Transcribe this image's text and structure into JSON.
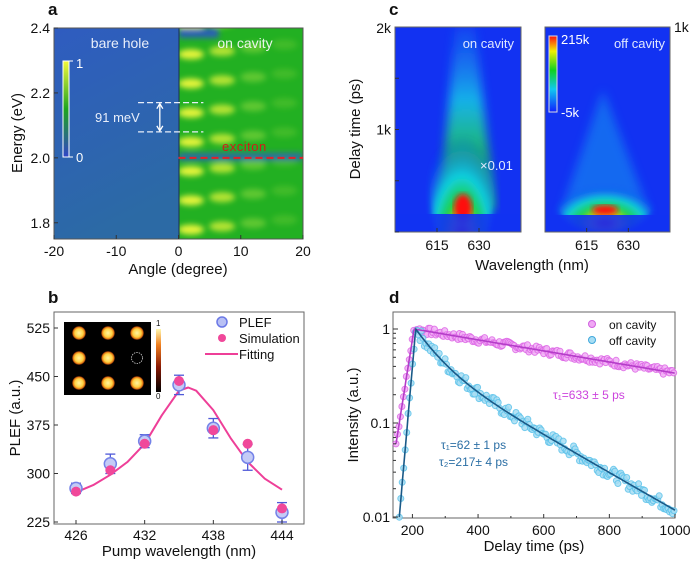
{
  "figure": {
    "panel_labels": [
      "a",
      "b",
      "c",
      "d"
    ]
  },
  "chart_data": [
    {
      "id": "a",
      "type": "heatmap",
      "title": "",
      "xlabel": "Angle (degree)",
      "ylabel": "Energy (eV)",
      "xlim": [
        -20,
        20
      ],
      "ylim": [
        1.75,
        2.4
      ],
      "xticks": [
        "-20",
        "-10",
        "0",
        "10",
        "20"
      ],
      "yticks": [
        "1.8",
        "2.0",
        "2.2",
        "2.4"
      ],
      "regions": [
        "bare hole",
        "on cavity"
      ],
      "colorbar": {
        "min": "0",
        "max": "1"
      },
      "annotations": {
        "spacing": "91 meV",
        "spacing_levels_eV": [
          2.08,
          2.17
        ],
        "exciton_label": "exciton",
        "exciton_energy_eV": 2.0
      },
      "colors": {
        "exciton": "#e0202a",
        "bare_bg": "#2e62ad",
        "cavity_bg": "#22b022",
        "bright": "#e6f53a"
      }
    },
    {
      "id": "b",
      "type": "scatter",
      "xlabel": "Pump wavelength (nm)",
      "ylabel": "PLEF (a.u.)",
      "xlim": [
        424.5,
        446.5
      ],
      "ylim": [
        220,
        545
      ],
      "xticks": [
        "426",
        "432",
        "438",
        "444"
      ],
      "yticks": [
        "225",
        "300",
        "375",
        "450",
        "525"
      ],
      "legend": {
        "position": "top-right",
        "entries": [
          "PLEF",
          "Simulation",
          "Fitting"
        ]
      },
      "series": [
        {
          "name": "PLEF",
          "x": [
            426,
            429,
            432,
            435,
            438,
            441,
            444
          ],
          "y": [
            277,
            315,
            350,
            437,
            370,
            325,
            240
          ],
          "err": [
            8,
            15,
            10,
            15,
            15,
            20,
            15
          ]
        },
        {
          "name": "Simulation",
          "x": [
            426,
            429,
            432,
            435,
            438,
            441,
            444
          ],
          "y": [
            272,
            305,
            346,
            443,
            367,
            346,
            246
          ]
        },
        {
          "name": "Fitting",
          "x": [
            426,
            427.5,
            429,
            430.5,
            432,
            433.5,
            435,
            435.8,
            436.5,
            438,
            439.5,
            441,
            442.5,
            444
          ],
          "y": [
            271,
            282,
            298,
            318,
            346,
            390,
            428,
            433,
            428,
            398,
            355,
            318,
            292,
            275
          ]
        }
      ],
      "inset": {
        "type": "heatmap",
        "grid": "3x3",
        "missing_cell": "row 2, col 3",
        "colorbar": {
          "min": "0",
          "max": "1"
        }
      },
      "colors": {
        "PLEF": "#8e9bea",
        "Simulation": "#f0489a",
        "Fitting": "#ee3f98",
        "errorbar": "#4f59d8"
      }
    },
    {
      "id": "c",
      "type": "heatmap",
      "xlabel": "Wavelength (nm)",
      "ylabel": "Delay time (ps)",
      "panels": [
        {
          "label": "on cavity",
          "ylim": [
            0,
            2000
          ],
          "yticks": [
            "1k",
            "2k"
          ],
          "scale_note": "×0.01"
        },
        {
          "label": "off cavity",
          "ylim": [
            0,
            1000
          ],
          "yticks": [
            "1k"
          ]
        }
      ],
      "xticks": [
        "615",
        "630"
      ],
      "colorbar": {
        "min": "-5k",
        "max": "215k"
      }
    },
    {
      "id": "d",
      "type": "scatter",
      "xlabel": "Delay time (ps)",
      "ylabel": "Intensity (a.u.)",
      "xlim": [
        150,
        1000
      ],
      "ylim": [
        0.01,
        1.2
      ],
      "yscale": "log",
      "xticks": [
        "200",
        "400",
        "600",
        "800",
        "1000"
      ],
      "yticks": [
        "0.01",
        "0.1",
        "1"
      ],
      "legend": {
        "position": "top-right",
        "entries": [
          "on cavity",
          "off cavity"
        ]
      },
      "series": [
        {
          "name": "on cavity",
          "rise_start": [
            150,
            0.06
          ],
          "peak": [
            205,
            1.0
          ],
          "tau_ps": [
            633
          ],
          "end": [
            1000,
            0.32
          ]
        },
        {
          "name": "off cavity",
          "rise_start": [
            160,
            0.01
          ],
          "peak": [
            210,
            1.0
          ],
          "tau_ps": [
            62,
            217
          ],
          "end": [
            1000,
            0.019
          ]
        }
      ],
      "annotations": [
        {
          "text": "τ₁=633 ± 5 ps",
          "series": "on cavity"
        },
        {
          "text": "τ₁=62 ± 1 ps",
          "series": "off cavity"
        },
        {
          "text": "τ₂=217± 4 ps",
          "series": "off cavity"
        }
      ],
      "colors": {
        "on cavity": "#dd66e6",
        "off cavity": "#5bc2ea",
        "on_fit": "#b43cc8",
        "off_fit": "#1a5a88",
        "tau_on": "#cc44dd",
        "tau_off": "#2b6fa5"
      }
    }
  ]
}
